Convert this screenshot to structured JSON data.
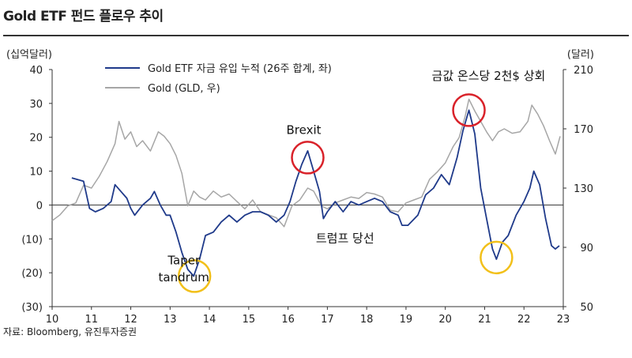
{
  "title": "Gold ETF 펀드 플로우 추이",
  "source": "자료: Bloomberg, 유진투자증권",
  "chart_data": {
    "type": "line",
    "left_axis_unit": "(십억달러)",
    "right_axis_unit": "(달러)",
    "x_ticks": [
      "10",
      "11",
      "12",
      "13",
      "14",
      "15",
      "16",
      "17",
      "18",
      "19",
      "20",
      "21",
      "22",
      "23"
    ],
    "x_range": [
      2010,
      2023
    ],
    "left_ylim": [
      -30,
      40
    ],
    "left_ticks": [
      40,
      30,
      20,
      10,
      0,
      -10,
      -20,
      -30
    ],
    "left_tick_labels": [
      "40",
      "30",
      "20",
      "10",
      "0",
      "(10)",
      "(20)",
      "(30)"
    ],
    "right_ylim": [
      50,
      210
    ],
    "right_ticks": [
      210,
      170,
      130,
      90,
      50
    ],
    "right_tick_labels": [
      "210",
      "170",
      "130",
      "90",
      "50"
    ],
    "legend": [
      {
        "name": "Gold ETF 자금 유입 누적 (26주 합계, 좌)",
        "color": "#1f3a8a"
      },
      {
        "name": "Gold (GLD, 우)",
        "color": "#a6a6a6"
      }
    ],
    "series": [
      {
        "name": "Gold ETF 자금 유입 누적 (26주 합계, 좌)",
        "color": "#1f3a8a",
        "axis": "left",
        "points": [
          [
            2010.5,
            8
          ],
          [
            2010.8,
            7
          ],
          [
            2010.95,
            -1
          ],
          [
            2011.1,
            -2
          ],
          [
            2011.3,
            -1
          ],
          [
            2011.5,
            1
          ],
          [
            2011.6,
            6
          ],
          [
            2011.75,
            4
          ],
          [
            2011.9,
            2
          ],
          [
            2012.0,
            -1
          ],
          [
            2012.1,
            -3
          ],
          [
            2012.3,
            0
          ],
          [
            2012.5,
            2
          ],
          [
            2012.6,
            4
          ],
          [
            2012.75,
            0
          ],
          [
            2012.9,
            -3
          ],
          [
            2013.0,
            -3
          ],
          [
            2013.15,
            -8
          ],
          [
            2013.3,
            -14
          ],
          [
            2013.45,
            -19
          ],
          [
            2013.6,
            -21
          ],
          [
            2013.75,
            -16
          ],
          [
            2013.9,
            -9
          ],
          [
            2014.1,
            -8
          ],
          [
            2014.3,
            -5
          ],
          [
            2014.5,
            -3
          ],
          [
            2014.7,
            -5
          ],
          [
            2014.9,
            -3
          ],
          [
            2015.1,
            -2
          ],
          [
            2015.3,
            -2
          ],
          [
            2015.5,
            -3
          ],
          [
            2015.7,
            -5
          ],
          [
            2015.9,
            -3
          ],
          [
            2016.05,
            1
          ],
          [
            2016.2,
            7
          ],
          [
            2016.35,
            12
          ],
          [
            2016.5,
            16
          ],
          [
            2016.65,
            10
          ],
          [
            2016.8,
            4
          ],
          [
            2016.9,
            -4
          ],
          [
            2017.0,
            -2
          ],
          [
            2017.2,
            1
          ],
          [
            2017.4,
            -2
          ],
          [
            2017.6,
            1
          ],
          [
            2017.8,
            0
          ],
          [
            2018.0,
            1
          ],
          [
            2018.2,
            2
          ],
          [
            2018.4,
            1
          ],
          [
            2018.6,
            -2
          ],
          [
            2018.8,
            -3
          ],
          [
            2018.9,
            -6
          ],
          [
            2019.05,
            -6
          ],
          [
            2019.3,
            -3
          ],
          [
            2019.5,
            3
          ],
          [
            2019.7,
            5
          ],
          [
            2019.9,
            9
          ],
          [
            2020.1,
            6
          ],
          [
            2020.3,
            14
          ],
          [
            2020.45,
            22
          ],
          [
            2020.6,
            28
          ],
          [
            2020.75,
            21
          ],
          [
            2020.9,
            5
          ],
          [
            2021.05,
            -4
          ],
          [
            2021.2,
            -13
          ],
          [
            2021.3,
            -16
          ],
          [
            2021.45,
            -11
          ],
          [
            2021.6,
            -9
          ],
          [
            2021.8,
            -3
          ],
          [
            2022.0,
            1
          ],
          [
            2022.15,
            5
          ],
          [
            2022.25,
            10
          ],
          [
            2022.4,
            6
          ],
          [
            2022.55,
            -4
          ],
          [
            2022.7,
            -12
          ],
          [
            2022.8,
            -13
          ],
          [
            2022.9,
            -12
          ]
        ]
      },
      {
        "name": "Gold (GLD, 우)",
        "color": "#a6a6a6",
        "axis": "right",
        "points": [
          [
            2010.0,
            108
          ],
          [
            2010.2,
            112
          ],
          [
            2010.4,
            118
          ],
          [
            2010.6,
            120
          ],
          [
            2010.8,
            132
          ],
          [
            2011.0,
            130
          ],
          [
            2011.2,
            138
          ],
          [
            2011.4,
            148
          ],
          [
            2011.6,
            160
          ],
          [
            2011.7,
            175
          ],
          [
            2011.85,
            163
          ],
          [
            2012.0,
            168
          ],
          [
            2012.15,
            158
          ],
          [
            2012.3,
            162
          ],
          [
            2012.5,
            155
          ],
          [
            2012.7,
            168
          ],
          [
            2012.85,
            165
          ],
          [
            2013.0,
            160
          ],
          [
            2013.15,
            152
          ],
          [
            2013.3,
            140
          ],
          [
            2013.45,
            118
          ],
          [
            2013.6,
            128
          ],
          [
            2013.75,
            124
          ],
          [
            2013.9,
            122
          ],
          [
            2014.1,
            128
          ],
          [
            2014.3,
            124
          ],
          [
            2014.5,
            126
          ],
          [
            2014.7,
            121
          ],
          [
            2014.9,
            116
          ],
          [
            2015.1,
            122
          ],
          [
            2015.3,
            114
          ],
          [
            2015.5,
            112
          ],
          [
            2015.7,
            110
          ],
          [
            2015.9,
            104
          ],
          [
            2016.1,
            118
          ],
          [
            2016.3,
            122
          ],
          [
            2016.5,
            130
          ],
          [
            2016.65,
            128
          ],
          [
            2016.85,
            118
          ],
          [
            2017.0,
            116
          ],
          [
            2017.2,
            120
          ],
          [
            2017.4,
            122
          ],
          [
            2017.6,
            124
          ],
          [
            2017.8,
            123
          ],
          [
            2018.0,
            127
          ],
          [
            2018.2,
            126
          ],
          [
            2018.4,
            124
          ],
          [
            2018.6,
            115
          ],
          [
            2018.8,
            114
          ],
          [
            2019.0,
            120
          ],
          [
            2019.2,
            122
          ],
          [
            2019.4,
            124
          ],
          [
            2019.6,
            136
          ],
          [
            2019.8,
            141
          ],
          [
            2020.0,
            147
          ],
          [
            2020.2,
            158
          ],
          [
            2020.35,
            164
          ],
          [
            2020.5,
            178
          ],
          [
            2020.6,
            190
          ],
          [
            2020.75,
            182
          ],
          [
            2020.9,
            175
          ],
          [
            2021.05,
            168
          ],
          [
            2021.2,
            162
          ],
          [
            2021.35,
            168
          ],
          [
            2021.5,
            170
          ],
          [
            2021.7,
            167
          ],
          [
            2021.9,
            168
          ],
          [
            2022.1,
            175
          ],
          [
            2022.2,
            186
          ],
          [
            2022.35,
            180
          ],
          [
            2022.5,
            172
          ],
          [
            2022.65,
            162
          ],
          [
            2022.8,
            153
          ],
          [
            2022.92,
            165
          ]
        ]
      }
    ],
    "annotations": [
      {
        "text": "금값 온스당 2천$ 상회",
        "x": 2021.1,
        "value": 203,
        "axis": "right"
      },
      {
        "text": "Brexit",
        "x": 2016.4,
        "value": 21,
        "axis": "left"
      },
      {
        "text": "트럼프 당선",
        "x": 2017.45,
        "value": -11,
        "axis": "left"
      },
      {
        "text": "Taper",
        "x": 2013.35,
        "value": -17.5,
        "axis": "left"
      },
      {
        "text": "tandrum",
        "x": 2013.35,
        "value": -22.5,
        "axis": "left"
      }
    ],
    "highlight_circles": [
      {
        "x": 2016.5,
        "value": 14,
        "axis": "left",
        "color": "#d9222a"
      },
      {
        "x": 2020.6,
        "value": 28,
        "axis": "left",
        "color": "#d9222a"
      },
      {
        "x": 2013.62,
        "value": -21,
        "axis": "left",
        "color": "#f2c01a"
      },
      {
        "x": 2021.3,
        "value": -15.5,
        "axis": "left",
        "color": "#f2c01a"
      }
    ]
  }
}
